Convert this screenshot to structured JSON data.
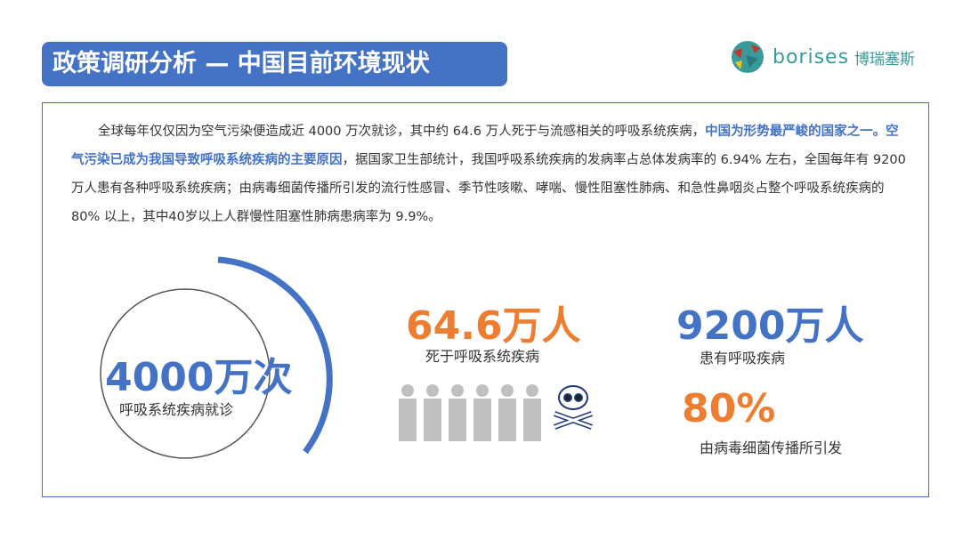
{
  "header": {
    "title": "政策调研分析 — 中国目前环境现状"
  },
  "logo": {
    "text_en": "borises",
    "text_cn": "博瑞塞斯"
  },
  "paragraph": {
    "part1": "全球每年仅仅因为空气污染便造成近 4000 万次就诊，其中约 64.6 万人死于与流感相关的呼吸系统疾病，",
    "highlight1": "中国为形势最严峻的国家之一。空气污染已成为我国导致呼吸系统疾病的主要原因",
    "part2": "，据国家卫生部统计，我国呼吸系统疾病的发病率占总体发病率的 6.94% 左右，全国每年有 9200 万人患有各种呼吸系统疾病；由病毒细菌传播所引发的流行性感冒、季节性咳嗽、哮喘、慢性阻塞性肺病、和急性鼻咽炎占整个呼吸系统疾病的 80% 以上，其中40岁以上人群慢性阻塞性肺病患病率为 9.9%。"
  },
  "stats": {
    "visits": {
      "value": "4000万次",
      "label": "呼吸系统疾病就诊"
    },
    "deaths": {
      "value": "64.6万人",
      "label": "死于呼吸系统疾病"
    },
    "patients": {
      "value": "9200万人",
      "label": "患有呼吸疾病"
    },
    "viral": {
      "value": "80%",
      "label": "由病毒细菌传播所引发"
    }
  },
  "colors": {
    "blue": "#4472C4",
    "orange": "#ED7D31",
    "gray": "#BFBFBF"
  },
  "icons": [
    "person-icon",
    "skull-crossbones-icon"
  ]
}
